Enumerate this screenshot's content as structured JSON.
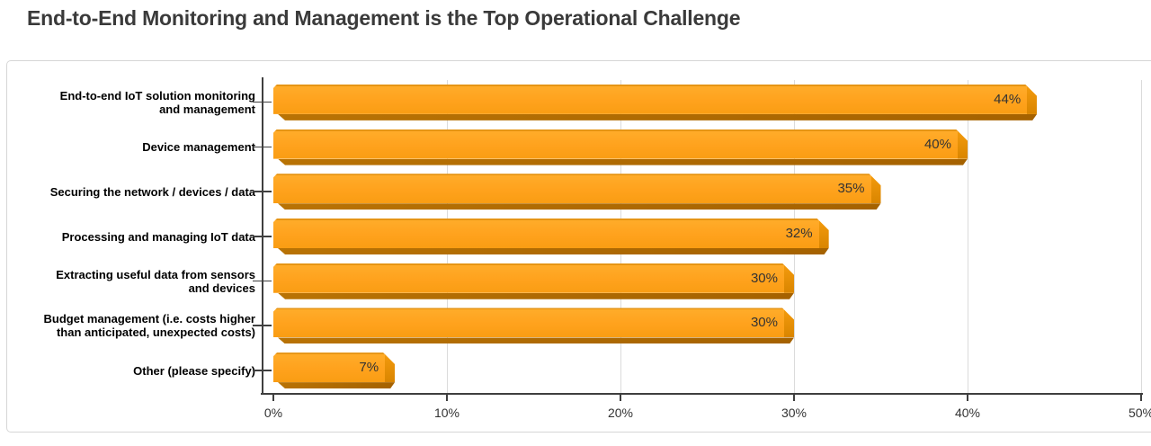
{
  "chart_data": {
    "type": "bar",
    "orientation": "horizontal",
    "title": "End-to-End Monitoring and Management is the Top Operational Challenge",
    "categories": [
      "End-to-end IoT solution monitoring and management",
      "Device management",
      "Securing the network / devices / data",
      "Processing and managing IoT data",
      "Extracting useful data from sensors and devices",
      "Budget management (i.e. costs higher than anticipated, unexpected costs)",
      "Other (please specify)"
    ],
    "values": [
      44,
      40,
      35,
      32,
      30,
      30,
      7
    ],
    "value_labels": [
      "44%",
      "40%",
      "35%",
      "32%",
      "30%",
      "30%",
      "7%"
    ],
    "x_tick_labels": [
      "0%",
      "10%",
      "20%",
      "30%",
      "40%",
      "50%"
    ],
    "xlim": [
      0,
      50
    ],
    "xlabel": "",
    "ylabel": "",
    "grid": true,
    "legend": false,
    "colors": {
      "bar_face": "#ffa21d",
      "bar_edge_right": "#d98500",
      "bar_bevel": "#a56200",
      "value_text": "#333333",
      "label_text": "#000000",
      "axis_line": "#3f3f3f",
      "gridline": "#dbdbdb",
      "panel_border": "#d6d6d6",
      "title_text": "#3a3a3a"
    }
  }
}
